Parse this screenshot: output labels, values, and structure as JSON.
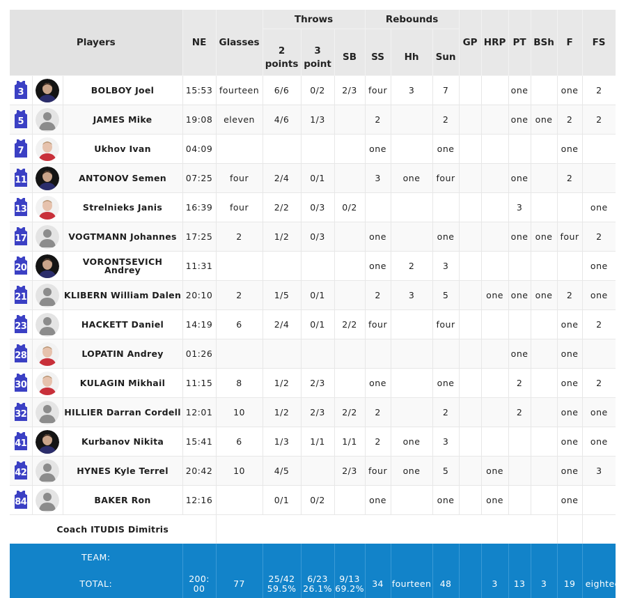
{
  "header": {
    "players": "Players",
    "ne": "NE",
    "glasses": "Glasses",
    "throws": "Throws",
    "two_points": "2 points",
    "three_point": "3 point",
    "sb": "SB",
    "rebounds": "Rebounds",
    "ss": "SS",
    "hh": "Hh",
    "sun": "Sun",
    "gp": "GP",
    "hrp": "HRP",
    "pt": "PT",
    "bsh": "BSh",
    "f": "F",
    "fs": "FS"
  },
  "players": [
    {
      "number": "3",
      "name": "BOLBOY Joel",
      "photo": "dark",
      "ne": "15:53",
      "glasses": "fourteen",
      "two": "6/6",
      "three": "0/2",
      "sb": "2/3",
      "ss": "four",
      "hh": "3",
      "sun": "7",
      "gp": "",
      "hrp": "",
      "pt": "one",
      "bsh": "",
      "f": "one",
      "fs": "2"
    },
    {
      "number": "5",
      "name": "JAMES Mike",
      "photo": "none",
      "ne": "19:08",
      "glasses": "eleven",
      "two": "4/6",
      "three": "1/3",
      "sb": "",
      "ss": "2",
      "hh": "",
      "sun": "2",
      "gp": "",
      "hrp": "",
      "pt": "one",
      "bsh": "one",
      "f": "2",
      "fs": "2"
    },
    {
      "number": "7",
      "name": "Ukhov Ivan",
      "photo": "light",
      "ne": "04:09",
      "glasses": "",
      "two": "",
      "three": "",
      "sb": "",
      "ss": "one",
      "hh": "",
      "sun": "one",
      "gp": "",
      "hrp": "",
      "pt": "",
      "bsh": "",
      "f": "one",
      "fs": ""
    },
    {
      "number": "11",
      "name": "ANTONOV Semen",
      "photo": "dark",
      "ne": "07:25",
      "glasses": "four",
      "two": "2/4",
      "three": "0/1",
      "sb": "",
      "ss": "3",
      "hh": "one",
      "sun": "four",
      "gp": "",
      "hrp": "",
      "pt": "one",
      "bsh": "",
      "f": "2",
      "fs": ""
    },
    {
      "number": "13",
      "name": "Strelnieks Janis",
      "photo": "light",
      "ne": "16:39",
      "glasses": "four",
      "two": "2/2",
      "three": "0/3",
      "sb": "0/2",
      "ss": "",
      "hh": "",
      "sun": "",
      "gp": "",
      "hrp": "",
      "pt": "3",
      "bsh": "",
      "f": "",
      "fs": "one"
    },
    {
      "number": "17",
      "name": "VOGTMANN Johannes",
      "photo": "none",
      "ne": "17:25",
      "glasses": "2",
      "two": "1/2",
      "three": "0/3",
      "sb": "",
      "ss": "one",
      "hh": "",
      "sun": "one",
      "gp": "",
      "hrp": "",
      "pt": "one",
      "bsh": "one",
      "f": "four",
      "fs": "2"
    },
    {
      "number": "20",
      "name": "VORONTSEVICH Andrey",
      "photo": "dark",
      "ne": "11:31",
      "glasses": "",
      "two": "",
      "three": "",
      "sb": "",
      "ss": "one",
      "hh": "2",
      "sun": "3",
      "gp": "",
      "hrp": "",
      "pt": "",
      "bsh": "",
      "f": "",
      "fs": "one"
    },
    {
      "number": "21",
      "name": "KLIBERN William Dalen",
      "photo": "none",
      "ne": "20:10",
      "glasses": "2",
      "two": "1/5",
      "three": "0/1",
      "sb": "",
      "ss": "2",
      "hh": "3",
      "sun": "5",
      "gp": "",
      "hrp": "one",
      "pt": "one",
      "bsh": "one",
      "f": "2",
      "fs": "one"
    },
    {
      "number": "23",
      "name": "HACKETT Daniel",
      "photo": "none",
      "ne": "14:19",
      "glasses": "6",
      "two": "2/4",
      "three": "0/1",
      "sb": "2/2",
      "ss": "four",
      "hh": "",
      "sun": "four",
      "gp": "",
      "hrp": "",
      "pt": "",
      "bsh": "",
      "f": "one",
      "fs": "2"
    },
    {
      "number": "28",
      "name": "LOPATIN Andrey",
      "photo": "light",
      "ne": "01:26",
      "glasses": "",
      "two": "",
      "three": "",
      "sb": "",
      "ss": "",
      "hh": "",
      "sun": "",
      "gp": "",
      "hrp": "",
      "pt": "one",
      "bsh": "",
      "f": "one",
      "fs": ""
    },
    {
      "number": "30",
      "name": "KULAGIN Mikhail",
      "photo": "light",
      "ne": "11:15",
      "glasses": "8",
      "two": "1/2",
      "three": "2/3",
      "sb": "",
      "ss": "one",
      "hh": "",
      "sun": "one",
      "gp": "",
      "hrp": "",
      "pt": "2",
      "bsh": "",
      "f": "one",
      "fs": "2"
    },
    {
      "number": "32",
      "name": "HILLIER Darran Cordell",
      "photo": "none",
      "ne": "12:01",
      "glasses": "10",
      "two": "1/2",
      "three": "2/3",
      "sb": "2/2",
      "ss": "2",
      "hh": "",
      "sun": "2",
      "gp": "",
      "hrp": "",
      "pt": "2",
      "bsh": "",
      "f": "one",
      "fs": "one"
    },
    {
      "number": "41",
      "name": "Kurbanov Nikita",
      "photo": "dark",
      "ne": "15:41",
      "glasses": "6",
      "two": "1/3",
      "three": "1/1",
      "sb": "1/1",
      "ss": "2",
      "hh": "one",
      "sun": "3",
      "gp": "",
      "hrp": "",
      "pt": "",
      "bsh": "",
      "f": "one",
      "fs": "one"
    },
    {
      "number": "42",
      "name": "HYNES Kyle Terrel",
      "photo": "none",
      "ne": "20:42",
      "glasses": "10",
      "two": "4/5",
      "three": "",
      "sb": "2/3",
      "ss": "four",
      "hh": "one",
      "sun": "5",
      "gp": "",
      "hrp": "one",
      "pt": "",
      "bsh": "",
      "f": "one",
      "fs": "3"
    },
    {
      "number": "84",
      "name": "BAKER Ron",
      "photo": "none",
      "ne": "12:16",
      "glasses": "",
      "two": "0/1",
      "three": "0/2",
      "sb": "",
      "ss": "one",
      "hh": "",
      "sun": "one",
      "gp": "",
      "hrp": "one",
      "pt": "",
      "bsh": "",
      "f": "one",
      "fs": ""
    }
  ],
  "coach": "Coach ITUDIS Dimitris",
  "team_label": "TEAM:",
  "total": {
    "label": "TOTAL:",
    "ne": "200:\n00",
    "glasses": "77",
    "two": "25/42",
    "two_pct": "59.5%",
    "three": "6/23",
    "three_pct": "26.1%",
    "sb": "9/13",
    "sb_pct": "69.2%",
    "ss": "34",
    "hh": "fourteen",
    "sun": "48",
    "gp": "",
    "hrp": "3",
    "pt": "13",
    "bsh": "3",
    "f": "19",
    "fs": "eighteen"
  },
  "colors": {
    "jersey": "#3b40c4",
    "total_bg": "#1283c9",
    "header_bg": "#e8e8e8"
  }
}
